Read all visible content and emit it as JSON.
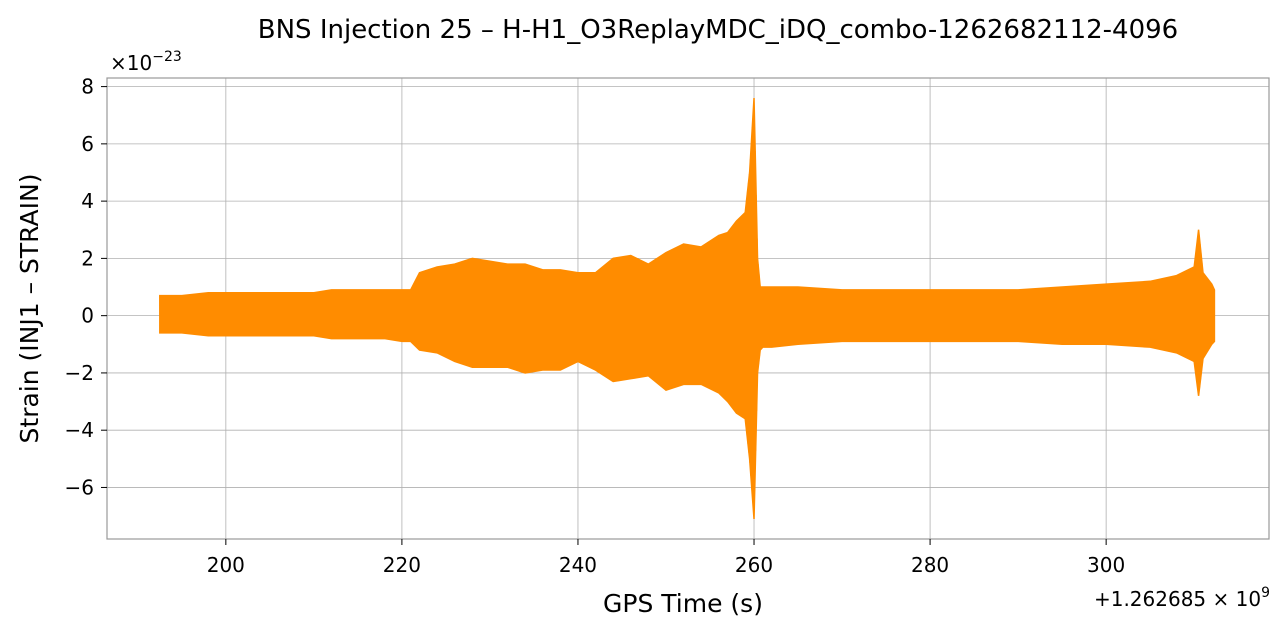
{
  "chart_data": {
    "type": "line",
    "title": "BNS Injection 25 – H-H1_O3ReplayMDC_iDQ_combo-1262682112-4096",
    "xlabel": "GPS Time (s)",
    "ylabel": "Strain (INJ1 – STRAIN)",
    "x_offset_label": "+1.262685 × 10",
    "x_offset_exponent": "9",
    "y_scale_label": "×10",
    "y_scale_exponent": "−23",
    "xlim": [
      186.5,
      318.5
    ],
    "ylim": [
      -7.8,
      8.3
    ],
    "x_ticks": [
      200,
      220,
      240,
      260,
      280,
      300
    ],
    "x_tick_labels": [
      "200",
      "220",
      "240",
      "260",
      "280",
      "300"
    ],
    "y_ticks": [
      -6,
      -4,
      -2,
      0,
      2,
      4,
      6,
      8
    ],
    "y_tick_labels": [
      "−6",
      "−4",
      "−2",
      "0",
      "2",
      "4",
      "6",
      "8"
    ],
    "grid": true,
    "legend": "none",
    "color": "#ff8c00",
    "series": [
      {
        "x": [
          192.5,
          195,
          198,
          200,
          202,
          205,
          208,
          210,
          212,
          215,
          218,
          220,
          221,
          222,
          224,
          226,
          228,
          230,
          232,
          234,
          236,
          238,
          240,
          242,
          244,
          246,
          248,
          250,
          252,
          254,
          256,
          257,
          258,
          259,
          259.5,
          260,
          260.4,
          260.7,
          261,
          262,
          265,
          270,
          275,
          280,
          285,
          290,
          295,
          300,
          305,
          308,
          310,
          310.5,
          311,
          312,
          312.3
        ],
        "ymax": [
          0.7,
          0.7,
          0.8,
          0.8,
          0.8,
          0.8,
          0.8,
          0.8,
          0.9,
          0.9,
          0.9,
          0.9,
          0.9,
          1.5,
          1.7,
          1.8,
          2.0,
          1.9,
          1.8,
          1.8,
          1.6,
          1.6,
          1.5,
          1.5,
          2.0,
          2.1,
          1.8,
          2.2,
          2.5,
          2.4,
          2.8,
          2.9,
          3.3,
          3.6,
          5.0,
          7.6,
          2.0,
          1.0,
          1.0,
          1.0,
          1.0,
          0.9,
          0.9,
          0.9,
          0.9,
          0.9,
          1.0,
          1.1,
          1.2,
          1.4,
          1.7,
          3.0,
          1.5,
          1.1,
          0.9
        ],
        "ymin": [
          -0.6,
          -0.6,
          -0.7,
          -0.7,
          -0.7,
          -0.7,
          -0.7,
          -0.7,
          -0.8,
          -0.8,
          -0.8,
          -0.9,
          -0.9,
          -1.2,
          -1.3,
          -1.6,
          -1.8,
          -1.8,
          -1.8,
          -2.0,
          -1.9,
          -1.9,
          -1.6,
          -1.9,
          -2.3,
          -2.2,
          -2.1,
          -2.6,
          -2.4,
          -2.4,
          -2.7,
          -3.0,
          -3.4,
          -3.6,
          -5.0,
          -7.1,
          -2.0,
          -1.2,
          -1.1,
          -1.1,
          -1.0,
          -0.9,
          -0.9,
          -0.9,
          -0.9,
          -0.9,
          -1.0,
          -1.0,
          -1.1,
          -1.3,
          -1.6,
          -2.8,
          -1.5,
          -1.0,
          -0.9
        ]
      }
    ]
  }
}
